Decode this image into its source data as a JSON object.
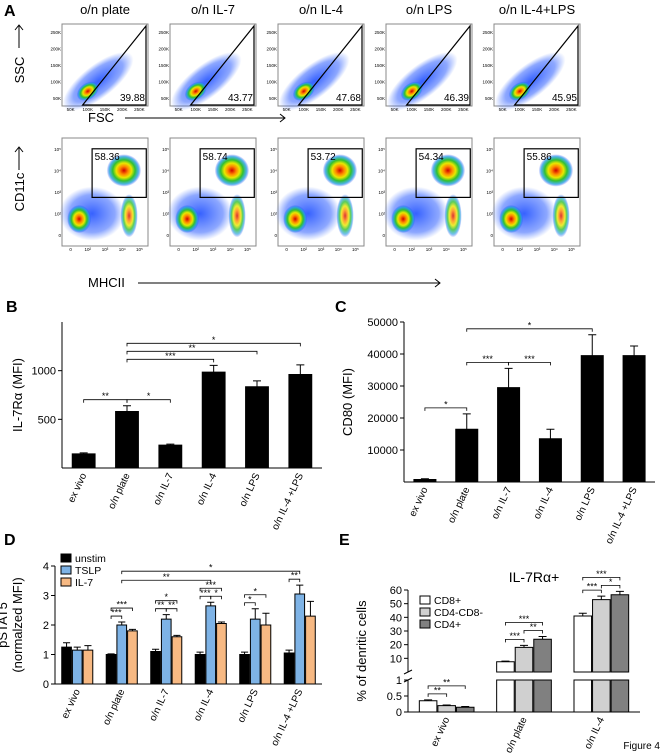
{
  "panel_a": {
    "label": "A",
    "columns": [
      "o/n plate",
      "o/n IL-7",
      "o/n IL-4",
      "o/n LPS",
      "o/n IL-4+LPS"
    ],
    "scatter_row": {
      "y_label": "SSC",
      "x_label": "FSC",
      "ticks": [
        "50K",
        "100K",
        "150K",
        "200K",
        "250K"
      ],
      "gate_values": [
        39.88,
        43.77,
        47.68,
        46.39,
        45.95
      ]
    },
    "density_row": {
      "y_label": "CD11c",
      "x_label": "MHCII",
      "ticks": [
        "0",
        "10²",
        "10³",
        "10⁴",
        "10⁵"
      ],
      "gate_values": [
        58.36,
        58.74,
        53.72,
        54.34,
        55.86
      ]
    }
  },
  "chart_data": [
    {
      "panel_label": "B",
      "type": "bar",
      "ylabel": "IL-7Rα (MFI)",
      "categories": [
        "ex vivo",
        "o/n plate",
        "o/n IL-7",
        "o/n IL-4",
        "o/n LPS",
        "o/n IL-4 +LPS"
      ],
      "values": [
        145,
        580,
        235,
        985,
        835,
        960
      ],
      "errors": [
        10,
        60,
        10,
        70,
        60,
        100
      ],
      "color": "#000000",
      "ylim": [
        0,
        1500
      ],
      "yticks": [
        500,
        1000
      ],
      "brackets": [
        {
          "from": [
            0,
            0
          ],
          "to": [
            1,
            0
          ],
          "label": "**"
        },
        {
          "from": [
            1,
            0
          ],
          "to": [
            2,
            0
          ],
          "label": "*"
        },
        {
          "from": [
            1,
            0
          ],
          "to": [
            3,
            0
          ],
          "label": "***"
        },
        {
          "from": [
            1,
            0
          ],
          "to": [
            4,
            0
          ],
          "label": "**"
        },
        {
          "from": [
            1,
            0
          ],
          "to": [
            5,
            0
          ],
          "label": "*"
        }
      ]
    },
    {
      "panel_label": "C",
      "type": "bar",
      "ylabel": "CD80 (MFI)",
      "categories": [
        "ex vivo",
        "o/n plate",
        "o/n IL-7",
        "o/n IL-4",
        "o/n LPS",
        "o/n IL-4 +LPS"
      ],
      "values": [
        800,
        16500,
        29500,
        13500,
        39500,
        39500
      ],
      "errors": [
        200,
        4800,
        6000,
        3000,
        6500,
        3000
      ],
      "color": "#000000",
      "ylim": [
        0,
        50000
      ],
      "yticks": [
        10000,
        20000,
        30000,
        40000,
        50000
      ],
      "brackets": [
        {
          "from": [
            0,
            0
          ],
          "to": [
            1,
            0
          ],
          "label": "*"
        },
        {
          "from": [
            1,
            0
          ],
          "to": [
            2,
            0
          ],
          "label": "***"
        },
        {
          "from": [
            2,
            0
          ],
          "to": [
            3,
            0
          ],
          "label": "***"
        },
        {
          "from": [
            1,
            0
          ],
          "to": [
            4,
            0
          ],
          "label": "*"
        }
      ]
    },
    {
      "panel_label": "D",
      "type": "bar",
      "ylabel": [
        "pSTAT5",
        "(normalzed MFI)"
      ],
      "categories": [
        "ex vivo",
        "o/n plate",
        "o/n IL-7",
        "o/n IL-4",
        "o/n LPS",
        "o/n IL-4 +LPS"
      ],
      "series": [
        {
          "name": "unstim",
          "color": "#000000",
          "values": [
            1.25,
            1.0,
            1.1,
            1.0,
            1.0,
            1.05
          ],
          "errors": [
            0.15,
            0.02,
            0.08,
            0.08,
            0.08,
            0.1
          ]
        },
        {
          "name": "TSLP",
          "color": "#7eb3e6",
          "values": [
            1.15,
            2.0,
            2.2,
            2.65,
            2.2,
            3.05
          ],
          "errors": [
            0.1,
            0.1,
            0.15,
            0.12,
            0.35,
            0.3
          ]
        },
        {
          "name": "IL-7",
          "color": "#f7b983",
          "values": [
            1.15,
            1.8,
            1.6,
            2.05,
            2.0,
            2.3
          ],
          "errors": [
            0.15,
            0.05,
            0.05,
            0.05,
            0.4,
            0.5
          ]
        }
      ],
      "ylim": [
        0,
        4
      ],
      "yticks": [
        0,
        1,
        2,
        3,
        4
      ],
      "legend": "upper left",
      "brackets": [
        {
          "from": [
            1,
            0
          ],
          "to": [
            1,
            1
          ],
          "label": "***"
        },
        {
          "from": [
            1,
            0
          ],
          "to": [
            1,
            2
          ],
          "label": "***"
        },
        {
          "from": [
            2,
            0
          ],
          "to": [
            2,
            1
          ],
          "label": "**"
        },
        {
          "from": [
            2,
            1
          ],
          "to": [
            2,
            2
          ],
          "label": "**"
        },
        {
          "from": [
            2,
            0
          ],
          "to": [
            2,
            2
          ],
          "label": "*"
        },
        {
          "from": [
            3,
            0
          ],
          "to": [
            3,
            1
          ],
          "label": "***"
        },
        {
          "from": [
            3,
            1
          ],
          "to": [
            3,
            2
          ],
          "label": "*"
        },
        {
          "from": [
            3,
            0
          ],
          "to": [
            3,
            2
          ],
          "label": "***"
        },
        {
          "from": [
            4,
            0
          ],
          "to": [
            4,
            1
          ],
          "label": "*"
        },
        {
          "from": [
            4,
            0
          ],
          "to": [
            4,
            2
          ],
          "label": "*"
        },
        {
          "from": [
            5,
            0
          ],
          "to": [
            5,
            1
          ],
          "label": "**"
        },
        {
          "from": [
            1,
            1
          ],
          "to": [
            3,
            1
          ],
          "label": "**"
        },
        {
          "from": [
            1,
            1
          ],
          "to": [
            5,
            1
          ],
          "label": "*"
        }
      ]
    },
    {
      "panel_label": "E",
      "type": "bar",
      "title": "IL-7Rα+",
      "ylabel": "% of denritic cells",
      "categories": [
        "ex vivo",
        "o/n plate",
        "o/n IL-4"
      ],
      "series": [
        {
          "name": "CD8+",
          "color": "#ffffff",
          "values": [
            0.35,
            7.5,
            41
          ],
          "errors": [
            0.03,
            0.5,
            2
          ]
        },
        {
          "name": "CD4-CD8-",
          "color": "#d0d0d0",
          "values": [
            0.2,
            18,
            53
          ],
          "errors": [
            0.02,
            1.5,
            2.5
          ]
        },
        {
          "name": "CD4+",
          "color": "#808080",
          "values": [
            0.15,
            24,
            56.5
          ],
          "errors": [
            0.02,
            2,
            2.5
          ]
        }
      ],
      "ylim": [
        0,
        60
      ],
      "yticks": [
        10,
        20,
        30,
        40,
        50,
        60
      ],
      "broken_axis": {
        "ylim": [
          0,
          1
        ],
        "yticks": [
          0,
          0.5,
          1
        ]
      },
      "legend": "upper left",
      "brackets": [
        {
          "from": [
            0,
            0
          ],
          "to": [
            0,
            1
          ],
          "label": "**"
        },
        {
          "from": [
            0,
            0
          ],
          "to": [
            0,
            2
          ],
          "label": "**"
        },
        {
          "from": [
            1,
            0
          ],
          "to": [
            1,
            1
          ],
          "label": "***"
        },
        {
          "from": [
            1,
            1
          ],
          "to": [
            1,
            2
          ],
          "label": "**"
        },
        {
          "from": [
            1,
            0
          ],
          "to": [
            1,
            2
          ],
          "label": "***"
        },
        {
          "from": [
            2,
            0
          ],
          "to": [
            2,
            1
          ],
          "label": "***"
        },
        {
          "from": [
            2,
            1
          ],
          "to": [
            2,
            2
          ],
          "label": "*"
        },
        {
          "from": [
            2,
            0
          ],
          "to": [
            2,
            2
          ],
          "label": "***"
        }
      ]
    }
  ],
  "footer": "Figure 4"
}
